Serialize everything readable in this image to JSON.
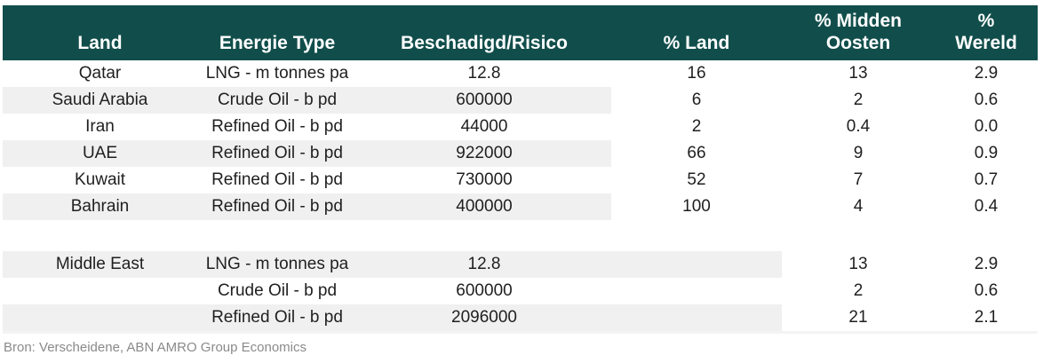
{
  "colors": {
    "header_bg": "#114E4B",
    "header_text": "#FFFFFF",
    "row_stripe": "#F0F0F0",
    "body_text": "#1F1F1F",
    "source_text": "#8A8A8A"
  },
  "table": {
    "headers": {
      "land": "Land",
      "energy_type": "Energie Type",
      "damaged_risk": "Beschadigd/Risico",
      "pct_land": "% Land",
      "pct_midden_oosten": "% Midden\nOosten",
      "pct_wereld": "%\nWereld"
    },
    "country_rows": [
      {
        "land": "Qatar",
        "energy_type": "LNG - m tonnes pa",
        "damaged_risk": "12.8",
        "pct_land": "16",
        "pct_midden_oosten": "13",
        "pct_wereld": "2.9"
      },
      {
        "land": "Saudi Arabia",
        "energy_type": "Crude Oil - b pd",
        "damaged_risk": "600000",
        "pct_land": "6",
        "pct_midden_oosten": "2",
        "pct_wereld": "0.6"
      },
      {
        "land": "Iran",
        "energy_type": "Refined Oil - b pd",
        "damaged_risk": "44000",
        "pct_land": "2",
        "pct_midden_oosten": "0.4",
        "pct_wereld": "0.0"
      },
      {
        "land": "UAE",
        "energy_type": "Refined Oil - b pd",
        "damaged_risk": "922000",
        "pct_land": "66",
        "pct_midden_oosten": "9",
        "pct_wereld": "0.9"
      },
      {
        "land": "Kuwait",
        "energy_type": "Refined Oil - b pd",
        "damaged_risk": "730000",
        "pct_land": "52",
        "pct_midden_oosten": "7",
        "pct_wereld": "0.7"
      },
      {
        "land": "Bahrain",
        "energy_type": "Refined Oil - b pd",
        "damaged_risk": "400000",
        "pct_land": "100",
        "pct_midden_oosten": "4",
        "pct_wereld": "0.4"
      }
    ],
    "region_rows": [
      {
        "land": "Middle East",
        "energy_type": "LNG - m tonnes pa",
        "damaged_risk": "12.8",
        "pct_land": "",
        "pct_midden_oosten": "13",
        "pct_wereld": "2.9"
      },
      {
        "land": "",
        "energy_type": "Crude Oil - b pd",
        "damaged_risk": "600000",
        "pct_land": "",
        "pct_midden_oosten": "2",
        "pct_wereld": "0.6"
      },
      {
        "land": "",
        "energy_type": "Refined Oil - b pd",
        "damaged_risk": "2096000",
        "pct_land": "",
        "pct_midden_oosten": "21",
        "pct_wereld": "2.1"
      }
    ]
  },
  "footer": {
    "source": "Bron: Verscheidene, ABN AMRO Group Economics"
  },
  "chart_data": {
    "type": "table",
    "columns": [
      "Land",
      "Energie Type",
      "Beschadigd/Risico",
      "% Land",
      "% Midden Oosten",
      "% Wereld"
    ],
    "rows": [
      [
        "Qatar",
        "LNG - m tonnes pa",
        12.8,
        16,
        13,
        2.9
      ],
      [
        "Saudi Arabia",
        "Crude Oil - b pd",
        600000,
        6,
        2,
        0.6
      ],
      [
        "Iran",
        "Refined Oil - b pd",
        44000,
        2,
        0.4,
        0.0
      ],
      [
        "UAE",
        "Refined Oil - b pd",
        922000,
        66,
        9,
        0.9
      ],
      [
        "Kuwait",
        "Refined Oil - b pd",
        730000,
        52,
        7,
        0.7
      ],
      [
        "Bahrain",
        "Refined Oil - b pd",
        400000,
        100,
        4,
        0.4
      ],
      [
        "Middle East",
        "LNG - m tonnes pa",
        12.8,
        null,
        13,
        2.9
      ],
      [
        "Middle East",
        "Crude Oil - b pd",
        600000,
        null,
        2,
        0.6
      ],
      [
        "Middle East",
        "Refined Oil - b pd",
        2096000,
        null,
        21,
        2.1
      ]
    ],
    "notes": "Bron: Verscheidene, ABN AMRO Group Economics",
    "layout": {
      "header_bg": "#114E4B",
      "striped": true
    }
  }
}
